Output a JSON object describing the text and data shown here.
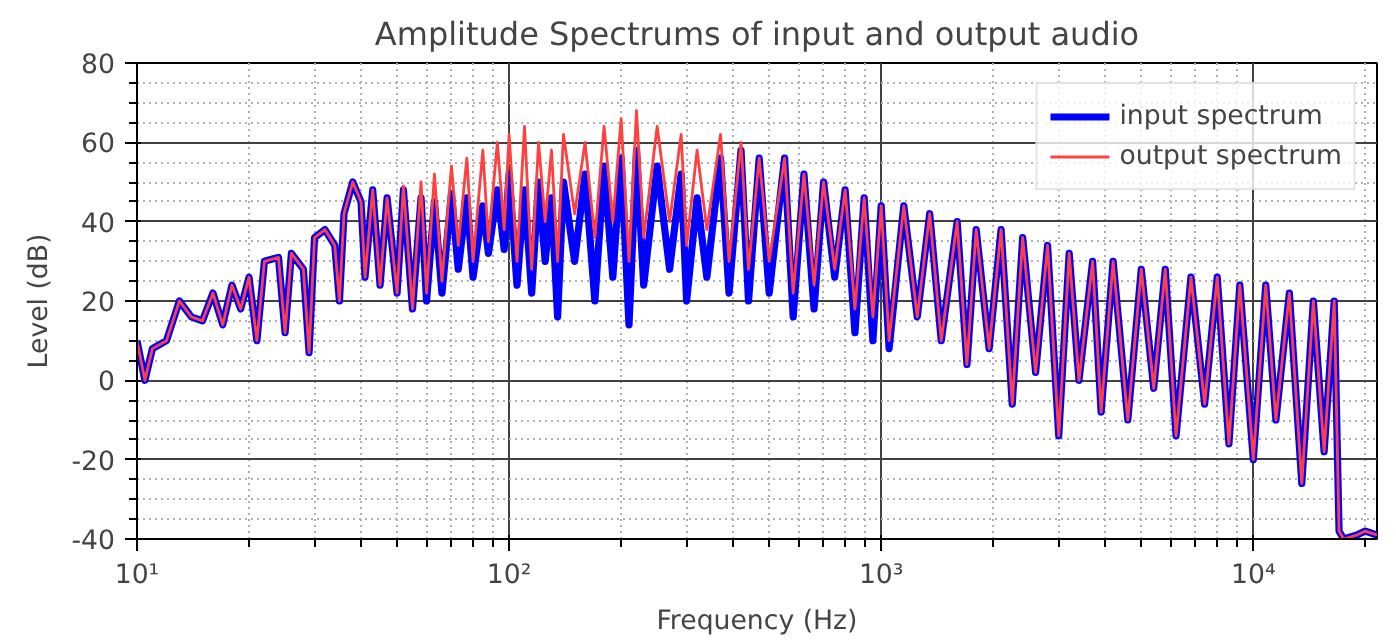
{
  "chart_data": {
    "type": "line",
    "title": "Amplitude Spectrums of input and output audio",
    "xlabel": "Frequency (Hz)",
    "ylabel": "Level (dB)",
    "log": "x",
    "grid": true,
    "legend": "top right",
    "line_style": "solid",
    "marker": "none",
    "xlim": [
      10,
      21500
    ],
    "xticks": [
      {
        "value": 10,
        "label": "10¹"
      },
      {
        "value": 100,
        "label": "10²"
      },
      {
        "value": 1000,
        "label": "10³"
      },
      {
        "value": 10000,
        "label": "10⁴"
      }
    ],
    "ylim": [
      -40,
      80
    ],
    "yticks": [
      -40,
      -20,
      0,
      20,
      40,
      60,
      80
    ],
    "x": [
      10,
      10.5,
      11,
      12,
      13,
      14,
      15,
      16,
      17,
      18,
      19,
      20,
      21,
      22,
      24,
      25,
      26,
      28,
      29,
      30,
      32,
      34,
      35,
      36,
      38,
      40,
      41,
      43,
      45,
      47,
      50,
      52,
      55,
      58,
      60,
      63,
      66,
      70,
      73,
      77,
      80,
      85,
      88,
      93,
      97,
      100,
      105,
      110,
      115,
      120,
      125,
      130,
      135,
      140,
      150,
      160,
      170,
      180,
      190,
      200,
      210,
      220,
      230,
      250,
      270,
      290,
      300,
      320,
      340,
      370,
      390,
      420,
      440,
      470,
      500,
      550,
      580,
      620,
      660,
      700,
      750,
      800,
      850,
      900,
      950,
      1000,
      1050,
      1150,
      1250,
      1350,
      1450,
      1600,
      1700,
      1800,
      1950,
      2100,
      2250,
      2400,
      2600,
      2800,
      3000,
      3200,
      3400,
      3700,
      3900,
      4200,
      4600,
      5000,
      5400,
      5800,
      6200,
      6800,
      7400,
      8000,
      8600,
      9200,
      10000,
      10800,
      11500,
      12500,
      13500,
      14500,
      15500,
      16500,
      17000,
      17500,
      19000,
      20000,
      21500
    ],
    "series": [
      {
        "name": "input spectrum",
        "color": "#0000ff",
        "values": [
          10,
          0,
          8,
          10,
          20,
          16,
          15,
          22,
          14,
          24,
          18,
          26,
          10,
          30,
          31,
          12,
          32,
          28,
          7,
          36,
          38,
          34,
          20,
          42,
          50,
          45,
          26,
          48,
          24,
          46,
          22,
          48,
          18,
          46,
          20,
          45,
          22,
          47,
          28,
          46,
          26,
          44,
          32,
          48,
          33,
          52,
          24,
          48,
          22,
          50,
          30,
          46,
          16,
          50,
          30,
          52,
          20,
          54,
          26,
          56,
          14,
          58,
          24,
          54,
          28,
          52,
          20,
          46,
          26,
          56,
          22,
          58,
          20,
          56,
          22,
          56,
          16,
          52,
          18,
          50,
          26,
          48,
          12,
          46,
          10,
          44,
          8,
          44,
          16,
          42,
          10,
          40,
          4,
          38,
          8,
          38,
          -6,
          36,
          2,
          34,
          -14,
          32,
          0,
          30,
          -8,
          30,
          -10,
          28,
          -2,
          28,
          -14,
          26,
          -6,
          26,
          -16,
          24,
          -20,
          24,
          -10,
          22,
          -26,
          20,
          -18,
          20,
          -38,
          -40,
          -39,
          -38,
          -39
        ]
      },
      {
        "name": "output spectrum",
        "color": "#ff4040",
        "values": [
          10,
          0,
          8,
          10,
          20,
          16,
          15,
          22,
          14,
          24,
          18,
          26,
          10,
          30,
          31,
          12,
          32,
          28,
          7,
          36,
          38,
          34,
          20,
          42,
          50,
          45,
          26,
          48,
          24,
          46,
          22,
          49,
          18,
          50,
          22,
          52,
          25,
          54,
          34,
          56,
          30,
          58,
          35,
          60,
          38,
          62,
          30,
          64,
          28,
          60,
          40,
          58,
          30,
          62,
          42,
          60,
          36,
          64,
          40,
          66,
          30,
          68,
          36,
          64,
          40,
          62,
          34,
          58,
          38,
          62,
          30,
          60,
          28,
          56,
          30,
          56,
          22,
          52,
          24,
          50,
          28,
          48,
          18,
          46,
          16,
          44,
          10,
          44,
          16,
          42,
          10,
          40,
          4,
          38,
          8,
          38,
          -6,
          36,
          2,
          34,
          -14,
          32,
          0,
          30,
          -8,
          30,
          -10,
          28,
          -2,
          28,
          -14,
          26,
          -6,
          26,
          -16,
          24,
          -20,
          24,
          -10,
          22,
          -26,
          20,
          -18,
          20,
          -38,
          -40,
          -39,
          -38,
          -39
        ]
      }
    ]
  }
}
